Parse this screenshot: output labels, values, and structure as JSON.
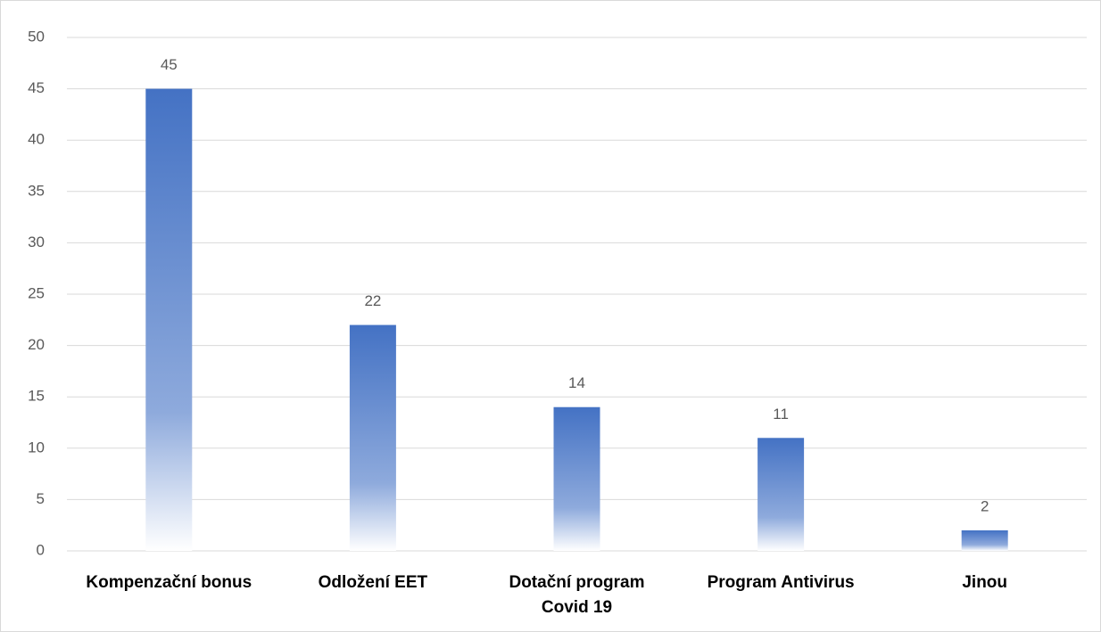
{
  "chart_data": {
    "type": "bar",
    "categories": [
      "Kompenzační bonus",
      "Odložení EET",
      "Dotační program Covid 19",
      "Program Antivirus",
      "Jinou"
    ],
    "values": [
      45,
      22,
      14,
      11,
      2
    ],
    "color": "#4472c4",
    "ylim": [
      0,
      50
    ],
    "yticks": [
      0,
      5,
      10,
      15,
      20,
      25,
      30,
      35,
      40,
      45,
      50
    ],
    "grid": true
  }
}
